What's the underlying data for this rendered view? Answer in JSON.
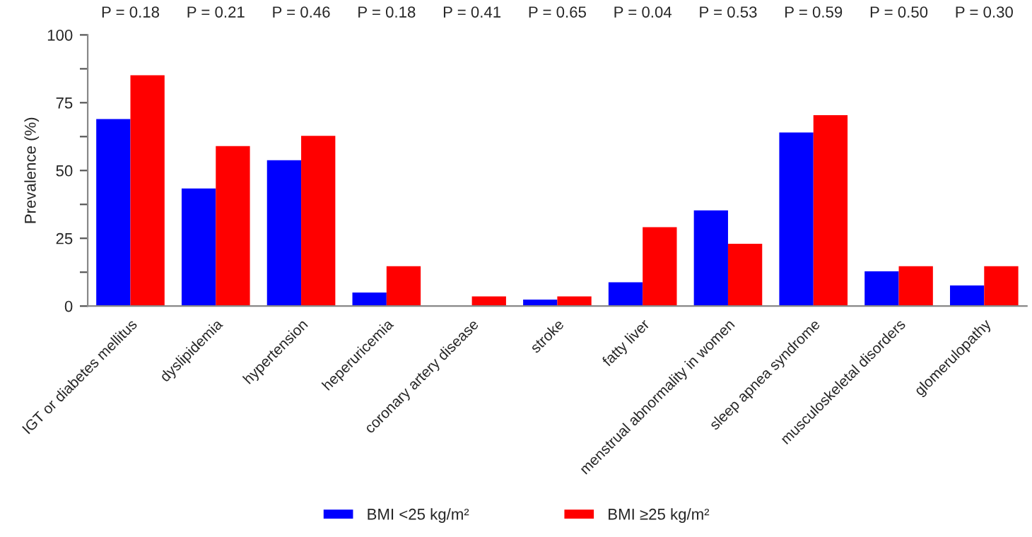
{
  "chart_data": {
    "type": "bar",
    "categories": [
      "IGT or diabetes mellitus",
      "dyslipidemia",
      "hypertension",
      "heperuricemia",
      "coronary artery disease",
      "stroke",
      "fatty liver",
      "menstrual abnormality in women",
      "sleep apnea syndrome",
      "musculoskeletal disorders",
      "glomerulopathy"
    ],
    "series": [
      {
        "name": "BMI <25 kg/m²",
        "color": "#0000ff",
        "values": [
          69.0,
          43.4,
          53.8,
          5.0,
          0,
          2.4,
          8.8,
          35.3,
          64.0,
          12.8,
          7.6
        ]
      },
      {
        "name": "BMI ≥25 kg/m²",
        "color": "#ff0000",
        "values": [
          85.1,
          59.0,
          62.8,
          14.7,
          3.6,
          3.6,
          29.1,
          23.0,
          70.4,
          14.7,
          14.7
        ]
      }
    ],
    "ylabel": "Prevalence (%)",
    "ylim": [
      0,
      100
    ],
    "yticks": [
      0,
      {
        "value": 12.5,
        "label": null
      },
      25,
      {
        "value": 37.5,
        "label": null
      },
      50,
      {
        "value": 62.5,
        "label": null
      },
      75,
      {
        "value": 87.5,
        "label": null
      },
      100
    ],
    "annotations": [
      "P = 0.18",
      "P = 0.21",
      "P = 0.46",
      "P = 0.18",
      "P = 0.41",
      "P = 0.65",
      "P = 0.04",
      "P = 0.53",
      "P = 0.59",
      "P = 0.50",
      "P = 0.30"
    ],
    "grid": false,
    "legend": "bottom"
  }
}
